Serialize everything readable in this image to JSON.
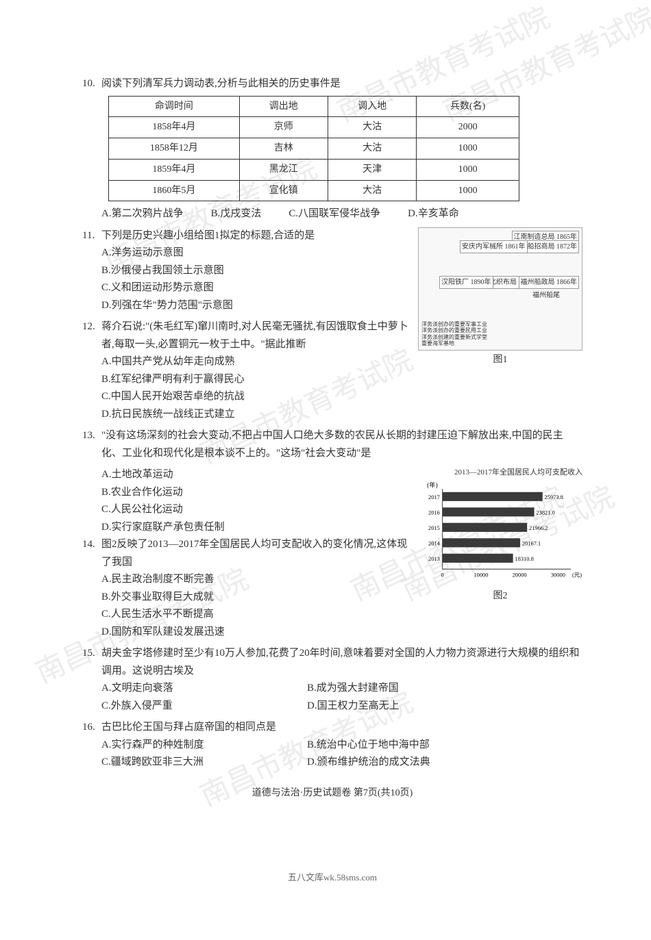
{
  "watermarks": {
    "text": "南昌市教育考试院"
  },
  "q10": {
    "num": "10.",
    "stem": "阅读下列清军兵力调动表,分析与此相关的历史事件是",
    "headers": [
      "命调时间",
      "调出地",
      "调入地",
      "兵数(名)"
    ],
    "rows": [
      [
        "1858年4月",
        "京师",
        "大沽",
        "2000"
      ],
      [
        "1858年12月",
        "吉林",
        "大沽",
        "1000"
      ],
      [
        "1859年4月",
        "黑龙江",
        "天津",
        "1000"
      ],
      [
        "1860年5月",
        "宣化镇",
        "大沽",
        "1000"
      ]
    ],
    "optA": "A.第二次鸦片战争",
    "optB": "B.戊戌变法",
    "optC": "C.八国联军侵华战争",
    "optD": "D.辛亥革命"
  },
  "q11": {
    "num": "11.",
    "stem": "下列是历史兴趣小组给图1拟定的标题,合适的是",
    "optA": "A.洋务运动示意图",
    "optB": "B.沙俄侵占我国领土示意图",
    "optC": "C.义和团运动形势示意图",
    "optD": "D.列强在华\"势力范围\"示意图",
    "map_labels": {
      "l1": "江南制造总局 1865年",
      "l2": "轮船招商局 1872年",
      "l3": "安庆内军械所 1861年",
      "l4": "湖北织布局 1888年",
      "l5": "汉阳铁厂 1890年",
      "l6": "福州船政局 1866年",
      "l7": "福州船尾",
      "legend1": "洋务派创办的重要军事工业",
      "legend2": "洋务派创办的重要民用工业",
      "legend3": "洋务派创建的重要新式学堂",
      "legend4": "重要海军基地"
    },
    "caption": "图1"
  },
  "q12": {
    "num": "12.",
    "stem": "蒋介石说:\"(朱毛红军)窜川南时,对人民毫无骚扰,有因饿取食土中萝卜者,每取一头,必置铜元一枚于土中。\"据此推断",
    "optA": "A.中国共产党从幼年走向成熟",
    "optB": "B.红军纪律严明有利于赢得民心",
    "optC": "C.中国人民开始艰苦卓绝的抗战",
    "optD": "D.抗日民族统一战线正式建立"
  },
  "q13": {
    "num": "13.",
    "stem": "\"没有这场深刻的社会大变动,不把占中国人口绝大多数的农民从长期的封建压迫下解放出来,中国的民主化、工业化和现代化是根本谈不上的。\"这场\"社会大变动\"是",
    "optA": "A.土地改革运动",
    "optB": "B.农业合作化运动",
    "optC": "C.人民公社化运动",
    "optD": "D.实行家庭联产承包责任制"
  },
  "q14": {
    "num": "14.",
    "stem": "图2反映了2013—2017年全国居民人均可支配收入的变化情况,这体现了我国",
    "optA": "A.民主政治制度不断完善",
    "optB": "B.外交事业取得巨大成就",
    "optC": "C.人民生活水平不断提高",
    "optD": "D.国防和军队建设发展迅速",
    "chart": {
      "type": "bar",
      "title": "2013—2017年全国居民人均可支配收入",
      "ylabel": "(年)",
      "xlabel": "(元)",
      "categories": [
        "2017",
        "2016",
        "2015",
        "2014",
        "2013"
      ],
      "values": [
        25973.8,
        23821.0,
        21966.2,
        20167.1,
        18310.8
      ],
      "value_labels": [
        "25973.8",
        "23821.0",
        "21966.2",
        "20167.1",
        "18310.8"
      ],
      "xmax": 30000,
      "xticks": [
        "0",
        "10000",
        "20000",
        "30000"
      ],
      "bar_color": "#3a3a3a",
      "axis_color": "#333333",
      "label_fontsize": 10,
      "background_color": "#ffffff"
    },
    "caption": "图2"
  },
  "q15": {
    "num": "15.",
    "stem": "胡夫金字塔修建时至少有10万人参加,花费了20年时间,意味着要对全国的人力物力资源进行大规模的组织和调用。这说明古埃及",
    "optA": "A.文明走向衰落",
    "optB": "B.成为强大封建帝国",
    "optC": "C.外族入侵严重",
    "optD": "D.国王权力至高无上"
  },
  "q16": {
    "num": "16.",
    "stem": "古巴比伦王国与拜占庭帝国的相同点是",
    "optA": "A.实行森严的种姓制度",
    "optB": "B.统治中心位于地中海中部",
    "optC": "C.疆域跨欧亚非三大洲",
    "optD": "D.颁布维护统治的成文法典"
  },
  "footer": "道德与法治·历史试题卷 第7页(共10页)",
  "source": "五八文库wk.58sms.com"
}
